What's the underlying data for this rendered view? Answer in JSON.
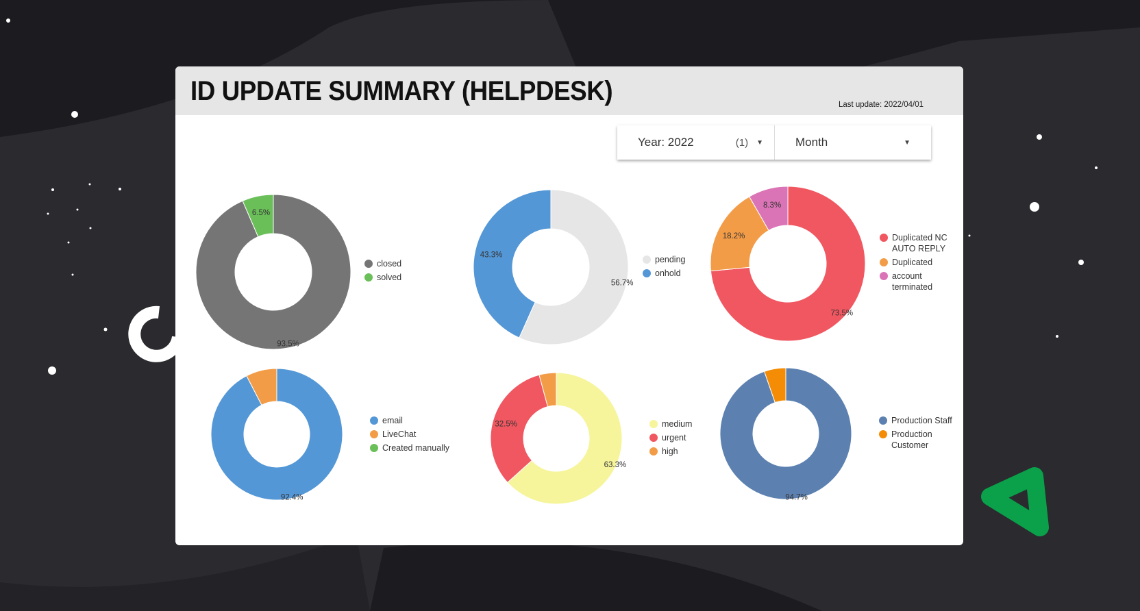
{
  "header": {
    "title": "ID UPDATE SUMMARY (HELPDESK)",
    "last_update": "Last update: 2022/04/01"
  },
  "filters": {
    "year": {
      "label": "Year: 2022",
      "count": "(1)"
    },
    "period": {
      "label": "Month"
    }
  },
  "chart_data": [
    {
      "type": "pie",
      "donut": true,
      "slices": [
        {
          "label": "closed",
          "value": 93.5,
          "color": "#757575",
          "show_label": true
        },
        {
          "label": "solved",
          "value": 6.5,
          "color": "#6abf59",
          "show_label": true
        }
      ]
    },
    {
      "type": "pie",
      "donut": true,
      "slices": [
        {
          "label": "pending",
          "value": 56.7,
          "color": "#e6e6e6",
          "show_label": true
        },
        {
          "label": "onhold",
          "value": 43.3,
          "color": "#5497d6",
          "show_label": true
        }
      ]
    },
    {
      "type": "pie",
      "donut": true,
      "slices": [
        {
          "label": "Duplicated NC\nAUTO REPLY",
          "value": 73.5,
          "color": "#f05761",
          "show_label": true
        },
        {
          "label": "Duplicated",
          "value": 18.2,
          "color": "#f39c47",
          "show_label": true
        },
        {
          "label": "account\nterminated",
          "value": 8.3,
          "color": "#db74b6",
          "show_label": true
        }
      ]
    },
    {
      "type": "pie",
      "donut": true,
      "slices": [
        {
          "label": "email",
          "value": 92.4,
          "color": "#5497d6",
          "show_label": true
        },
        {
          "label": "LiveChat",
          "value": 7.6,
          "color": "#f39c47",
          "show_label": false
        },
        {
          "label": "Created manually",
          "value": 0,
          "color": "#6abf59",
          "show_label": false
        }
      ]
    },
    {
      "type": "pie",
      "donut": true,
      "slices": [
        {
          "label": "medium",
          "value": 63.3,
          "color": "#f6f59c",
          "show_label": true
        },
        {
          "label": "urgent",
          "value": 32.5,
          "color": "#f05761",
          "show_label": true
        },
        {
          "label": "high",
          "value": 4.2,
          "color": "#f39c47",
          "show_label": false
        }
      ]
    },
    {
      "type": "pie",
      "donut": true,
      "slices": [
        {
          "label": "Production Staff",
          "value": 94.7,
          "color": "#5c81b1",
          "show_label": true
        },
        {
          "label": "Production\nCustomer",
          "value": 5.3,
          "color": "#f48c06",
          "show_label": false
        }
      ]
    }
  ]
}
